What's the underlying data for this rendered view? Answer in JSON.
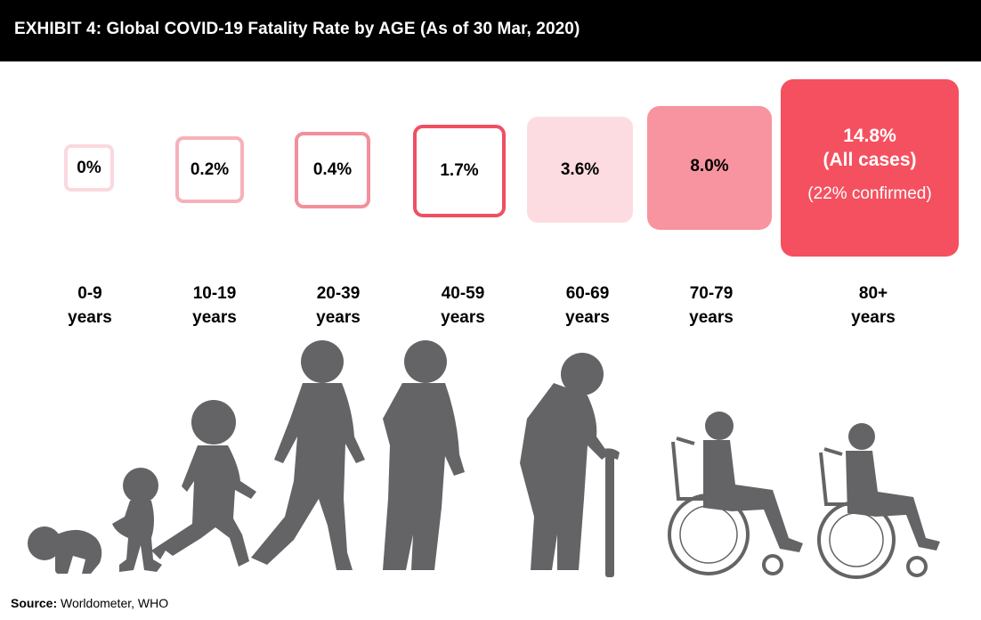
{
  "header": {
    "title": "EXHIBIT 4: Global COVID-19 Fatality Rate by AGE (As of 30 Mar, 2020)"
  },
  "chart_data": {
    "type": "bar",
    "title": "EXHIBIT 4: Global COVID-19 Fatality Rate by AGE (As of 30 Mar, 2020)",
    "categories": [
      {
        "line1": "0-9",
        "line2": "years"
      },
      {
        "line1": "10-19",
        "line2": "years"
      },
      {
        "line1": "20-39",
        "line2": "years"
      },
      {
        "line1": "40-59",
        "line2": "years"
      },
      {
        "line1": "60-69",
        "line2": "years"
      },
      {
        "line1": "70-79",
        "line2": "years"
      },
      {
        "line1": "80+",
        "line2": "years"
      }
    ],
    "values": [
      0,
      0.2,
      0.4,
      1.7,
      3.6,
      8.0,
      14.8
    ],
    "labels": [
      "0%",
      "0.2%",
      "0.4%",
      "1.7%",
      "3.6%",
      "8.0%",
      "14.8%"
    ],
    "extra_labels": {
      "all_cases": "(All cases)",
      "confirmed": "(22% confirmed)"
    },
    "colors": {
      "outline_1": "#fbd8dd",
      "outline_2": "#f7b1ba",
      "outline_3": "#f38f9b",
      "outline_4": "#ef4f63",
      "fill_5": "#fddce1",
      "fill_6": "#f8949f",
      "fill_7": "#f5505f",
      "figure": "#646466"
    }
  },
  "source": {
    "label": "Source:",
    "text": " Worldometer, WHO"
  }
}
